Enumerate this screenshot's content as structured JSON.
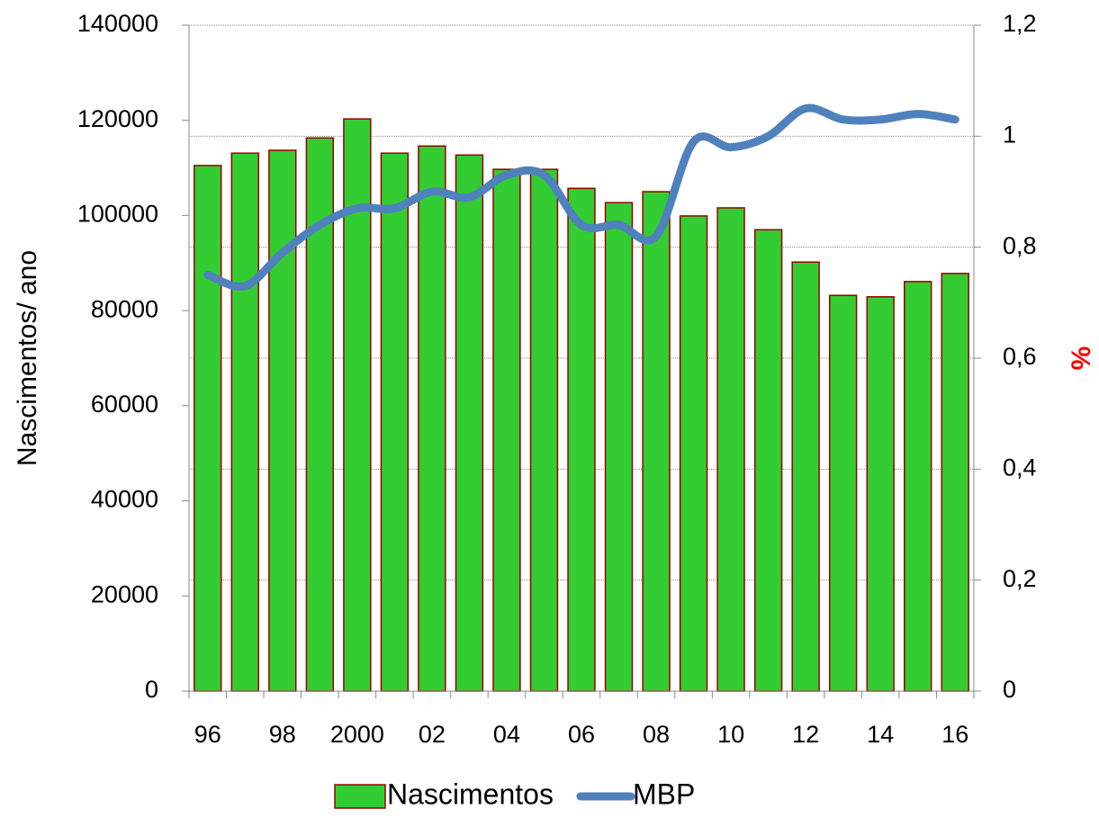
{
  "chart_data": {
    "type": "bar",
    "y_label": "Nascimentos/ ano",
    "y2_label": "%",
    "categories": [
      "96",
      null,
      "98",
      null,
      "2000",
      null,
      "02",
      null,
      "04",
      null,
      "06",
      null,
      "08",
      null,
      "10",
      null,
      "12",
      null,
      "14",
      null,
      "16"
    ],
    "series": [
      {
        "name": "Nascimentos",
        "type": "bar",
        "color": "#33cc33",
        "edge": "#990000",
        "values": [
          110500,
          113100,
          113700,
          116300,
          120300,
          113100,
          114600,
          112700,
          109700,
          109700,
          105700,
          102700,
          105000,
          99900,
          101600,
          97000,
          90200,
          83200,
          82900,
          86100,
          87800
        ]
      },
      {
        "name": "MBP",
        "type": "line",
        "axis": "y2",
        "color": "#4f81bd",
        "values": [
          0.75,
          0.73,
          0.79,
          0.84,
          0.87,
          0.87,
          0.9,
          0.89,
          0.93,
          0.93,
          0.84,
          0.84,
          0.82,
          0.99,
          0.98,
          1.0,
          1.05,
          1.03,
          1.03,
          1.04,
          1.03
        ]
      }
    ],
    "ylim": [
      0,
      140000
    ],
    "yticks": [
      0,
      20000,
      40000,
      60000,
      80000,
      100000,
      120000,
      140000
    ],
    "y2lim": [
      0,
      1.2
    ],
    "y2ticks": [
      0,
      {
        "value": 0.2,
        "label": "0,2"
      },
      {
        "value": 0.4,
        "label": "0,4"
      },
      {
        "value": 0.6,
        "label": "0,6"
      },
      {
        "value": 0.8,
        "label": "0,8"
      },
      1,
      {
        "value": 1.2,
        "label": "1,2"
      }
    ],
    "grid": "y2",
    "legend": "bottom"
  }
}
